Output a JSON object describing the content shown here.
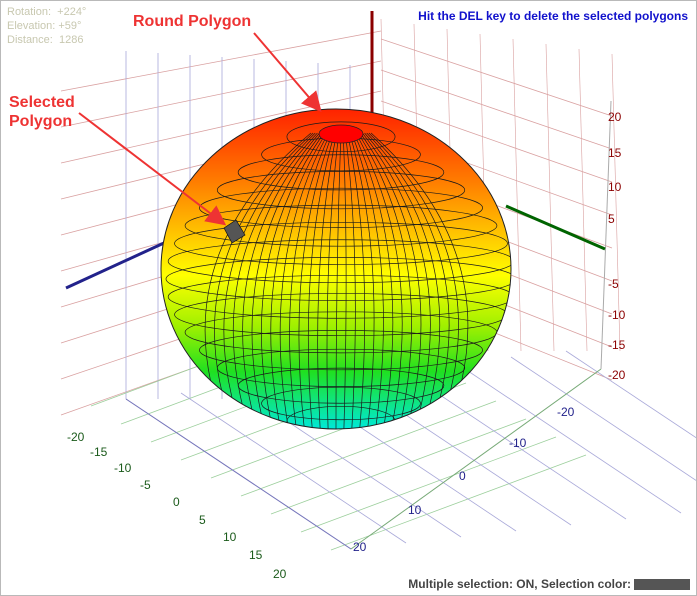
{
  "info": {
    "rotation_label": "Rotation:",
    "rotation_value": "+224°",
    "elevation_label": "Elevation:",
    "elevation_value": "+59°",
    "distance_label": "Distance:",
    "distance_value": "1286"
  },
  "callouts": {
    "round_polygon": "Round Polygon",
    "selected_line1": "Selected",
    "selected_line2": "Polygon"
  },
  "hint": "Hit the DEL key to delete the selected polygons",
  "status": {
    "text": "Multiple selection: ON, Selection color:",
    "selection_color": "#555555"
  },
  "axes": {
    "z_ticks": [
      "20",
      "15",
      "10",
      "5",
      "-5",
      "-10",
      "-15",
      "-20"
    ],
    "right_front_ticks": [
      "-20",
      "-10",
      "0",
      "10",
      "20"
    ],
    "left_front_ticks": [
      "-20",
      "-15",
      "-10",
      "-5",
      "0",
      "5",
      "10",
      "15",
      "20"
    ]
  },
  "colors": {
    "z_axis": "#8b0000",
    "green_axis": "#006400",
    "blue_axis": "#22228b",
    "grid_red": "#d9a0a0",
    "grid_blue": "#a9a9d9",
    "grid_green": "#9ccf9c",
    "tick_z": "#8b0000",
    "tick_right": "#22228b",
    "tick_left": "#1a5a1a",
    "arrow": "#ee3333"
  }
}
